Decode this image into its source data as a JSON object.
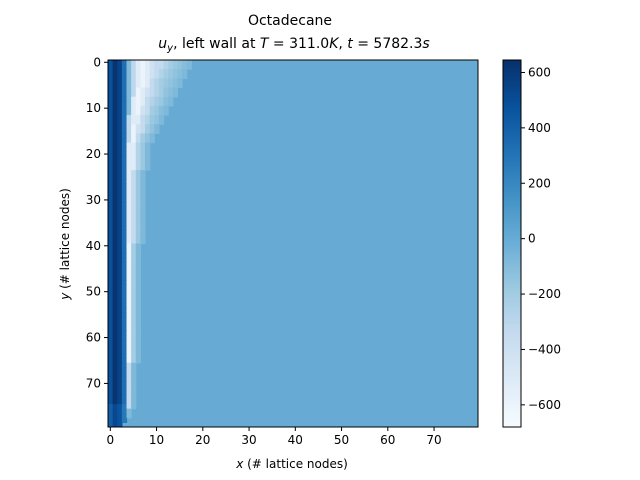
{
  "chart_data": {
    "type": "heatmap",
    "title_line1": "Octadecane",
    "title_line2": {
      "u": "u",
      "u_sub": "y",
      "mid": ", left wall at ",
      "T": "T",
      "T_val": " = 311.0",
      "K": "K",
      "sep": ", ",
      "t": "t",
      "t_val": " = 5782.3",
      "s": "s"
    },
    "xlabel": {
      "var": "x",
      "text": " (# lattice nodes)"
    },
    "ylabel": {
      "var": "y",
      "text": " (# lattice nodes)"
    },
    "grid_size": {
      "nx": 80,
      "ny": 80
    },
    "x_ticks": [
      "0",
      "10",
      "20",
      "30",
      "40",
      "50",
      "60",
      "70"
    ],
    "y_ticks": [
      "0",
      "10",
      "20",
      "30",
      "40",
      "50",
      "60",
      "70"
    ],
    "y_axis_inverted": true,
    "colormap": "Blues",
    "vmin": -680,
    "vmax": 645,
    "colorbar_ticks": [
      "600",
      "400",
      "200",
      "0",
      "−200",
      "−400",
      "−600"
    ],
    "colorbar_tick_values": [
      600,
      400,
      200,
      0,
      -200,
      -400,
      -600
    ],
    "background_value": 0,
    "profile_columns": {
      "x": [
        0,
        1,
        2,
        3,
        4,
        5,
        6,
        7,
        8,
        9,
        10,
        11,
        12,
        13,
        14,
        15,
        16,
        17
      ],
      "values": [
        480,
        620,
        550,
        330,
        130,
        -80,
        -310,
        -520,
        -600,
        -520,
        -420,
        -340,
        -270,
        -210,
        -170,
        -140,
        -110,
        -80
      ]
    },
    "plume_extent_x_by_row": [
      {
        "y": 0,
        "x_end": 17
      },
      {
        "y": 2,
        "x_end": 16
      },
      {
        "y": 4,
        "x_end": 15
      },
      {
        "y": 6,
        "x_end": 14
      },
      {
        "y": 8,
        "x_end": 13
      },
      {
        "y": 10,
        "x_end": 12
      },
      {
        "y": 12,
        "x_end": 11
      },
      {
        "y": 14,
        "x_end": 10
      },
      {
        "y": 16,
        "x_end": 9
      },
      {
        "y": 18,
        "x_end": 8
      },
      {
        "y": 24,
        "x_end": 7
      },
      {
        "y": 40,
        "x_end": 6
      },
      {
        "y": 66,
        "x_end": 5
      },
      {
        "y": 76,
        "x_end": 4
      },
      {
        "y": 78,
        "x_end": 3
      },
      {
        "y": 79,
        "x_end": 2
      }
    ],
    "boundary_layer_wall_value": 640
  }
}
